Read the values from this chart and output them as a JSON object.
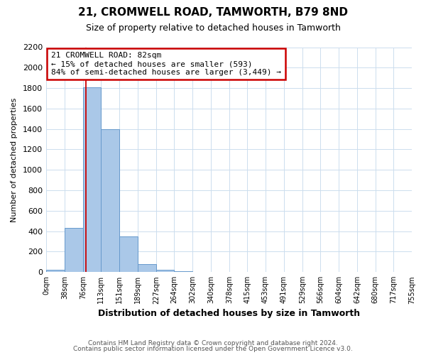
{
  "title": "21, CROMWELL ROAD, TAMWORTH, B79 8ND",
  "subtitle": "Size of property relative to detached houses in Tamworth",
  "xlabel": "Distribution of detached houses by size in Tamworth",
  "ylabel": "Number of detached properties",
  "bin_edges": [
    0,
    38,
    76,
    113,
    151,
    189,
    227,
    264,
    302,
    340,
    378,
    415,
    453,
    491,
    529,
    566,
    604,
    642,
    680,
    717,
    755
  ],
  "bin_counts": [
    20,
    430,
    1810,
    1400,
    350,
    80,
    25,
    10,
    0,
    0,
    0,
    0,
    0,
    0,
    0,
    0,
    0,
    0,
    0,
    0
  ],
  "bar_color": "#aac8e8",
  "bar_edge_color": "#6699cc",
  "property_line_x": 82,
  "property_line_color": "#cc0000",
  "ylim": [
    0,
    2200
  ],
  "yticks": [
    0,
    200,
    400,
    600,
    800,
    1000,
    1200,
    1400,
    1600,
    1800,
    2000,
    2200
  ],
  "xtick_labels": [
    "0sqm",
    "38sqm",
    "76sqm",
    "113sqm",
    "151sqm",
    "189sqm",
    "227sqm",
    "264sqm",
    "302sqm",
    "340sqm",
    "378sqm",
    "415sqm",
    "453sqm",
    "491sqm",
    "529sqm",
    "566sqm",
    "604sqm",
    "642sqm",
    "680sqm",
    "717sqm",
    "755sqm"
  ],
  "annotation_title": "21 CROMWELL ROAD: 82sqm",
  "annotation_line1": "← 15% of detached houses are smaller (593)",
  "annotation_line2": "84% of semi-detached houses are larger (3,449) →",
  "annotation_box_color": "#ffffff",
  "annotation_box_edge_color": "#cc0000",
  "footnote1": "Contains HM Land Registry data © Crown copyright and database right 2024.",
  "footnote2": "Contains public sector information licensed under the Open Government Licence v3.0.",
  "plot_bg_color": "#ffffff",
  "fig_bg_color": "#ffffff",
  "grid_color": "#ccddee"
}
